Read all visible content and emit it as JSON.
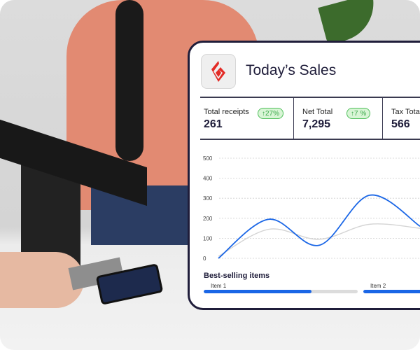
{
  "card": {
    "title": "Today’s Sales",
    "stats": [
      {
        "label": "Total receipts",
        "value": "261",
        "badge": "↑27%"
      },
      {
        "label": "Net Total",
        "value": "7,295",
        "badge": "↑7 %"
      },
      {
        "label": "Tax Total",
        "value": "566"
      }
    ],
    "best_selling": {
      "title": "Best-selling items",
      "items": [
        {
          "label": "Item 1",
          "progress": 0.7
        },
        {
          "label": "Item 2",
          "progress": 1.0
        }
      ]
    }
  },
  "colors": {
    "brand": "#e32b26",
    "accent": "#1a66e6",
    "border": "#1f1d3a",
    "badge_green": "#3aa84a"
  },
  "chart_data": {
    "type": "line",
    "x": [
      0,
      1,
      2,
      3,
      4
    ],
    "yticks": [
      "500",
      "400",
      "300",
      "200",
      "100",
      "0"
    ],
    "ylim": [
      0,
      500
    ],
    "grid": true,
    "series": [
      {
        "color": "#1a66e6",
        "values": [
          0,
          195,
          65,
          315,
          160
        ]
      },
      {
        "color": "#d4d4d4",
        "values": [
          10,
          145,
          95,
          170,
          150
        ]
      }
    ]
  }
}
